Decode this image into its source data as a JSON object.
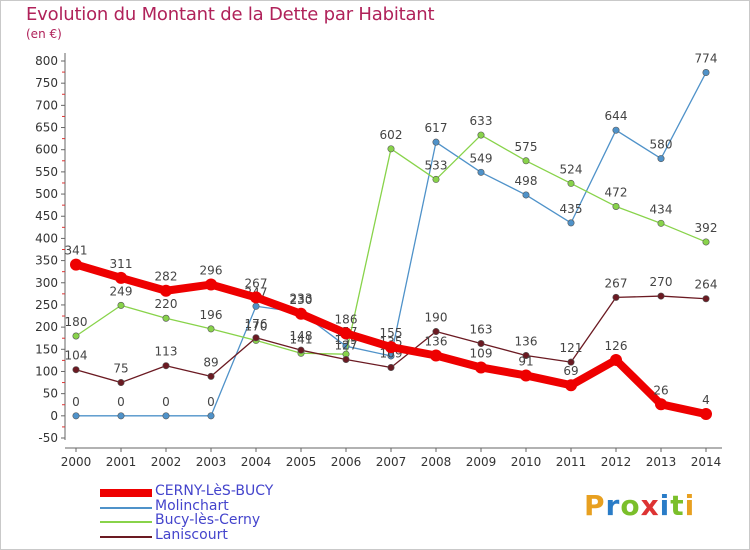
{
  "title": "Evolution du Montant de la Dette par Habitant",
  "unit_label": "(en €)",
  "logo_text": "Proxiti",
  "chart_data": {
    "type": "line",
    "title": "Evolution du Montant de la Dette par Habitant",
    "ylabel": "(en €)",
    "xlabel": "",
    "x": [
      2000,
      2001,
      2002,
      2003,
      2004,
      2005,
      2006,
      2007,
      2008,
      2009,
      2010,
      2011,
      2012,
      2013,
      2014
    ],
    "ylim": [
      -50,
      800
    ],
    "yticks": [
      -50,
      0,
      50,
      100,
      150,
      200,
      250,
      300,
      350,
      400,
      450,
      500,
      550,
      600,
      650,
      700,
      750,
      800
    ],
    "grid": false,
    "legend_position": "bottom-left",
    "series": [
      {
        "name": "CERNY-LèS-BUCY",
        "color": "#ee0000",
        "values": [
          341,
          311,
          282,
          296,
          267,
          230,
          186,
          155,
          136,
          109,
          91,
          69,
          126,
          26,
          4
        ]
      },
      {
        "name": "Molinchart",
        "color": "#4f92c9",
        "values": [
          0,
          0,
          0,
          0,
          247,
          233,
          157,
          135,
          617,
          549,
          498,
          435,
          644,
          580,
          774
        ]
      },
      {
        "name": "Bucy-lès-Cerny",
        "color": "#88d34a",
        "values": [
          180,
          249,
          220,
          196,
          170,
          141,
          139,
          602,
          533,
          633,
          575,
          524,
          472,
          434,
          392
        ]
      },
      {
        "name": "Laniscourt",
        "color": "#6b1a22",
        "values": [
          104,
          75,
          113,
          89,
          176,
          148,
          127,
          109,
          190,
          163,
          136,
          121,
          267,
          270,
          264
        ]
      }
    ]
  }
}
